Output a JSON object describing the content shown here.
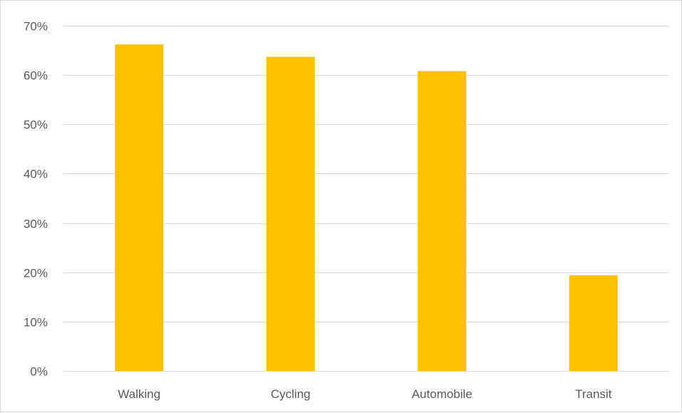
{
  "chart_data": {
    "type": "bar",
    "title": "",
    "xlabel": "",
    "ylabel": "",
    "categories": [
      "Walking",
      "Cycling",
      "Automobile",
      "Transit"
    ],
    "values": [
      66.2,
      63.7,
      60.8,
      19.4
    ],
    "ylim": [
      0,
      70
    ],
    "y_ticks": [
      0,
      10,
      20,
      30,
      40,
      50,
      60,
      70
    ],
    "y_tick_labels": [
      "0%",
      "10%",
      "20%",
      "30%",
      "40%",
      "50%",
      "60%",
      "70%"
    ],
    "y_unit": "%",
    "grid": true,
    "legend": "none",
    "colors": {
      "bar": "#FFC000",
      "grid": "#D9D9D9",
      "text": "#595959"
    }
  }
}
